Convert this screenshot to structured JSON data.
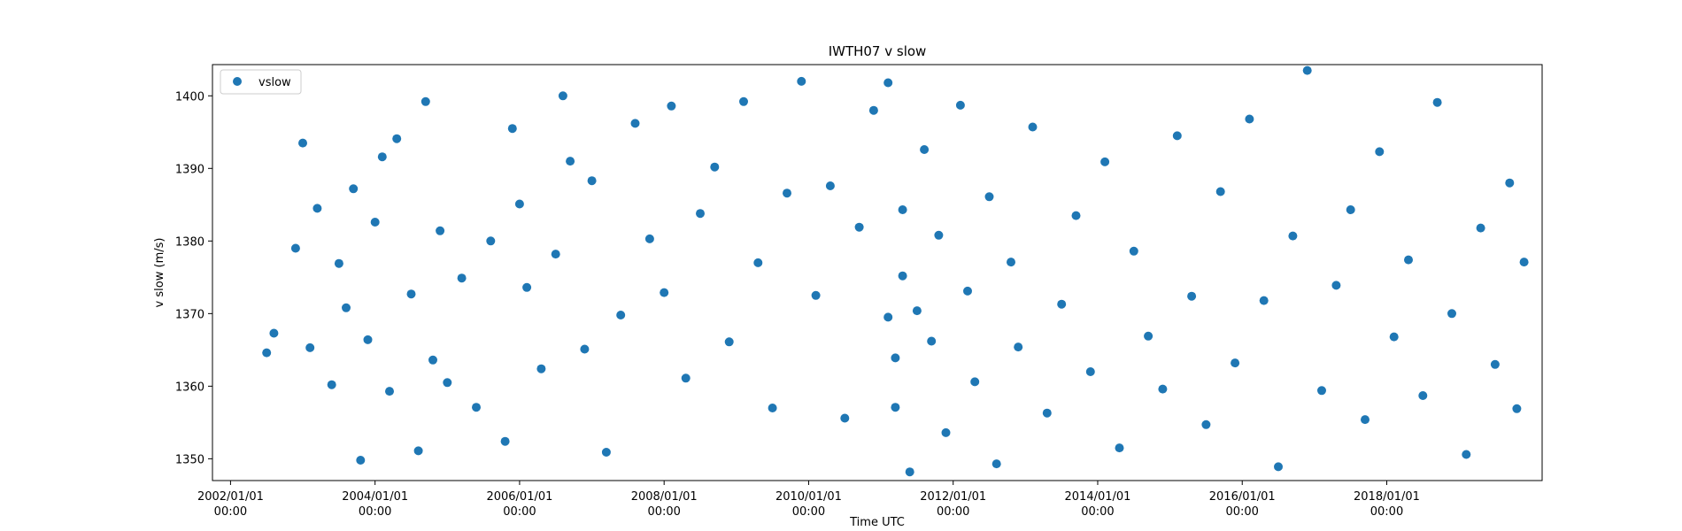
{
  "chart_data": {
    "type": "scatter",
    "title": "IWTH07 v slow",
    "xlabel": "Time UTC",
    "ylabel": "v slow (m/s)",
    "xlim": [
      2001.75,
      2020.15
    ],
    "ylim": [
      1347,
      1404.3
    ],
    "x_ticks": [
      {
        "value": 2002.0,
        "date": "2002/01/01",
        "time": "00:00"
      },
      {
        "value": 2004.0,
        "date": "2004/01/01",
        "time": "00:00"
      },
      {
        "value": 2006.0,
        "date": "2006/01/01",
        "time": "00:00"
      },
      {
        "value": 2008.0,
        "date": "2008/01/01",
        "time": "00:00"
      },
      {
        "value": 2010.0,
        "date": "2010/01/01",
        "time": "00:00"
      },
      {
        "value": 2012.0,
        "date": "2012/01/01",
        "time": "00:00"
      },
      {
        "value": 2014.0,
        "date": "2014/01/01",
        "time": "00:00"
      },
      {
        "value": 2016.0,
        "date": "2016/01/01",
        "time": "00:00"
      },
      {
        "value": 2018.0,
        "date": "2018/01/01",
        "time": "00:00"
      }
    ],
    "y_ticks": [
      1350,
      1360,
      1370,
      1380,
      1390,
      1400
    ],
    "legend": {
      "placement": "upper-left",
      "entries": [
        "vslow"
      ]
    },
    "color": "#1f77b4",
    "series": [
      {
        "name": "vslow",
        "x": [
          2002.5,
          2002.6,
          2002.9,
          2003.0,
          2003.1,
          2003.2,
          2003.4,
          2003.5,
          2003.6,
          2003.7,
          2003.8,
          2003.9,
          2004.0,
          2004.1,
          2004.2,
          2004.3,
          2004.5,
          2004.6,
          2004.7,
          2004.8,
          2004.9,
          2005.0,
          2005.2,
          2005.4,
          2005.6,
          2005.8,
          2005.9,
          2006.0,
          2006.1,
          2006.3,
          2006.5,
          2006.6,
          2006.7,
          2006.9,
          2007.0,
          2007.2,
          2007.4,
          2007.6,
          2007.8,
          2008.0,
          2008.1,
          2008.3,
          2008.5,
          2008.7,
          2008.9,
          2009.1,
          2009.3,
          2009.5,
          2009.7,
          2009.9,
          2010.1,
          2010.3,
          2010.5,
          2010.7,
          2010.9,
          2011.1,
          2011.1,
          2011.2,
          2011.2,
          2011.3,
          2011.3,
          2011.4,
          2011.5,
          2011.6,
          2011.7,
          2011.8,
          2011.9,
          2012.1,
          2012.2,
          2012.3,
          2012.5,
          2012.6,
          2012.8,
          2012.9,
          2013.1,
          2013.3,
          2013.5,
          2013.7,
          2013.9,
          2014.1,
          2014.3,
          2014.5,
          2014.7,
          2014.9,
          2015.1,
          2015.3,
          2015.5,
          2015.7,
          2015.9,
          2016.1,
          2016.3,
          2016.5,
          2016.7,
          2016.9,
          2017.1,
          2017.3,
          2017.5,
          2017.7,
          2017.9,
          2018.1,
          2018.3,
          2018.5,
          2018.7,
          2018.9,
          2019.1,
          2019.3,
          2019.5,
          2019.7,
          2019.8,
          2019.9
        ],
        "y": [
          1364.6,
          1367.3,
          1379.0,
          1393.5,
          1365.3,
          1384.5,
          1360.2,
          1376.9,
          1370.8,
          1387.2,
          1349.8,
          1366.4,
          1382.6,
          1391.6,
          1359.3,
          1394.1,
          1372.7,
          1351.1,
          1399.2,
          1363.6,
          1381.4,
          1360.5,
          1374.9,
          1357.1,
          1380.0,
          1352.4,
          1395.5,
          1385.1,
          1373.6,
          1362.4,
          1378.2,
          1400.0,
          1391.0,
          1365.1,
          1388.3,
          1350.9,
          1369.8,
          1396.2,
          1380.3,
          1372.9,
          1398.6,
          1361.1,
          1383.8,
          1390.2,
          1366.1,
          1399.2,
          1377.0,
          1357.0,
          1386.6,
          1402.0,
          1372.5,
          1387.6,
          1355.6,
          1381.9,
          1398.0,
          1401.8,
          1369.5,
          1357.1,
          1363.9,
          1384.3,
          1375.2,
          1348.2,
          1370.4,
          1392.6,
          1366.2,
          1380.8,
          1353.6,
          1398.7,
          1373.1,
          1360.6,
          1386.1,
          1349.3,
          1377.1,
          1365.4,
          1395.7,
          1356.3,
          1371.3,
          1383.5,
          1362.0,
          1390.9,
          1351.5,
          1378.6,
          1366.9,
          1359.6,
          1394.5,
          1372.4,
          1354.7,
          1386.8,
          1363.2,
          1396.8,
          1371.8,
          1348.9,
          1380.7,
          1403.5,
          1359.4,
          1373.9,
          1384.3,
          1355.4,
          1392.3,
          1366.8,
          1377.4,
          1358.7,
          1399.1,
          1370.0,
          1350.6,
          1381.8,
          1363.0,
          1388.0,
          1356.9,
          1377.1
        ]
      }
    ]
  }
}
